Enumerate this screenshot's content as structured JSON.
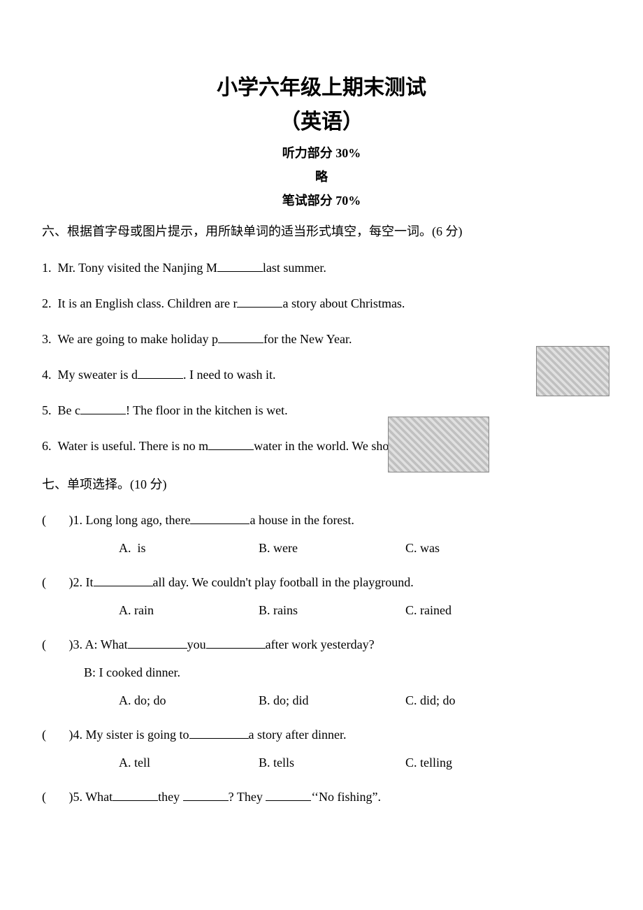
{
  "title": {
    "line1": "小学六年级上期末测试",
    "line2": "（英语）"
  },
  "headers": {
    "listening": "听力部分 30%",
    "skip": "略",
    "written": "笔试部分 70%"
  },
  "section6": {
    "instruction": "六、根据首字母或图片提示，用所缺单词的适当形式填空，每空一词。(6 分)",
    "q1": {
      "num": "1.",
      "pre": "Mr. Tony visited the Nanjing M",
      "post": "last summer."
    },
    "q2": {
      "num": "2.",
      "pre": "It is an English class. Children are r",
      "post": "a story about Christmas."
    },
    "q3": {
      "num": "3.",
      "pre": "We are going to make holiday p",
      "post": "for the New Year."
    },
    "q4": {
      "num": "4.",
      "pre": "My sweater is d",
      "post": ". I need to wash it."
    },
    "q5": {
      "num": "5.",
      "pre": "Be c",
      "post": "! The floor in the kitchen is wet."
    },
    "q6": {
      "num": "6.",
      "pre": "Water is useful. There is no m",
      "post": "water in the world. We should save it."
    }
  },
  "section7": {
    "instruction": "七、单项选择。(10 分)",
    "questions": [
      {
        "num": "1.",
        "stem_pre": "Long long ago, there",
        "stem_post": "a house in the forest.",
        "a": "A.  is",
        "b": "B. were",
        "c": "C. was"
      },
      {
        "num": "2.",
        "stem_pre": "It",
        "stem_post": "all day. We couldn't play football in the playground.",
        "a": "A. rain",
        "b": "B. rains",
        "c": "C. rained"
      },
      {
        "num": "3.",
        "stem_pre": "A: What",
        "stem_mid": "you",
        "stem_post": "after work yesterday?",
        "sub": "B: I cooked dinner.",
        "a": "A. do; do",
        "b": "B. do; did",
        "c": "C. did; do"
      },
      {
        "num": "4.",
        "stem_pre": "My sister is going to",
        "stem_post": "a story after dinner.",
        "a": "A. tell",
        "b": "B. tells",
        "c": "C. telling"
      },
      {
        "num": "5.",
        "stem_pre": "What",
        "stem_mid": "they ",
        "stem_post": "? They ",
        "stem_post2": "‘‘No fishing”.",
        "a": "",
        "b": "",
        "c": ""
      }
    ]
  },
  "colors": {
    "text": "#000000",
    "background": "#ffffff"
  },
  "typography": {
    "title_fontsize": 30,
    "body_fontsize": 18,
    "font_family": "Times New Roman, SimSun"
  }
}
